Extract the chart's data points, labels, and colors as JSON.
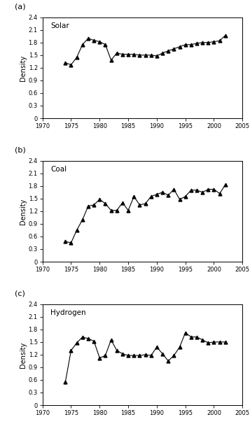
{
  "solar": {
    "label": "(a)",
    "title": "Solar",
    "x": [
      1974,
      1975,
      1976,
      1977,
      1978,
      1979,
      1980,
      1981,
      1982,
      1983,
      1984,
      1985,
      1986,
      1987,
      1988,
      1989,
      1990,
      1991,
      1992,
      1993,
      1994,
      1995,
      1996,
      1997,
      1998,
      1999,
      2000,
      2001,
      2002
    ],
    "y": [
      1.32,
      1.27,
      1.45,
      1.75,
      1.9,
      1.85,
      1.82,
      1.75,
      1.38,
      1.55,
      1.52,
      1.52,
      1.52,
      1.5,
      1.5,
      1.5,
      1.48,
      1.55,
      1.6,
      1.65,
      1.7,
      1.75,
      1.75,
      1.78,
      1.8,
      1.8,
      1.82,
      1.84,
      1.97
    ]
  },
  "coal": {
    "label": "(b)",
    "title": "Coal",
    "x": [
      1974,
      1975,
      1976,
      1977,
      1978,
      1979,
      1980,
      1981,
      1982,
      1983,
      1984,
      1985,
      1986,
      1987,
      1988,
      1989,
      1990,
      1991,
      1992,
      1993,
      1994,
      1995,
      1996,
      1997,
      1998,
      1999,
      2000,
      2001,
      2002
    ],
    "y": [
      0.48,
      0.45,
      0.75,
      1.0,
      1.32,
      1.35,
      1.48,
      1.38,
      1.22,
      1.22,
      1.4,
      1.22,
      1.55,
      1.35,
      1.38,
      1.55,
      1.6,
      1.65,
      1.58,
      1.72,
      1.48,
      1.55,
      1.7,
      1.7,
      1.65,
      1.72,
      1.72,
      1.62,
      1.83
    ]
  },
  "hydrogen": {
    "label": "(c)",
    "title": "Hydrogen",
    "x": [
      1974,
      1975,
      1976,
      1977,
      1978,
      1979,
      1980,
      1981,
      1982,
      1983,
      1984,
      1985,
      1986,
      1987,
      1988,
      1989,
      1990,
      1991,
      1992,
      1993,
      1994,
      1995,
      1996,
      1997,
      1998,
      1999,
      2000,
      2001,
      2002
    ],
    "y": [
      0.55,
      1.3,
      1.48,
      1.62,
      1.58,
      1.52,
      1.12,
      1.18,
      1.55,
      1.3,
      1.22,
      1.18,
      1.18,
      1.18,
      1.2,
      1.18,
      1.38,
      1.22,
      1.05,
      1.18,
      1.38,
      1.72,
      1.62,
      1.62,
      1.55,
      1.48,
      1.5,
      1.5,
      1.5
    ]
  },
  "xlim": [
    1970,
    2005
  ],
  "ylim": [
    0,
    2.4
  ],
  "yticks": [
    0,
    0.3,
    0.6,
    0.9,
    1.2,
    1.5,
    1.8,
    2.1,
    2.4
  ],
  "xticks": [
    1970,
    1975,
    1980,
    1985,
    1990,
    1995,
    2000,
    2005
  ],
  "ylabel": "Density",
  "marker": "^",
  "markersize": 3.5,
  "linewidth": 0.8,
  "color": "black",
  "tick_fontsize": 6,
  "label_fontsize": 7,
  "title_fontsize": 7.5,
  "panel_label_fontsize": 8
}
